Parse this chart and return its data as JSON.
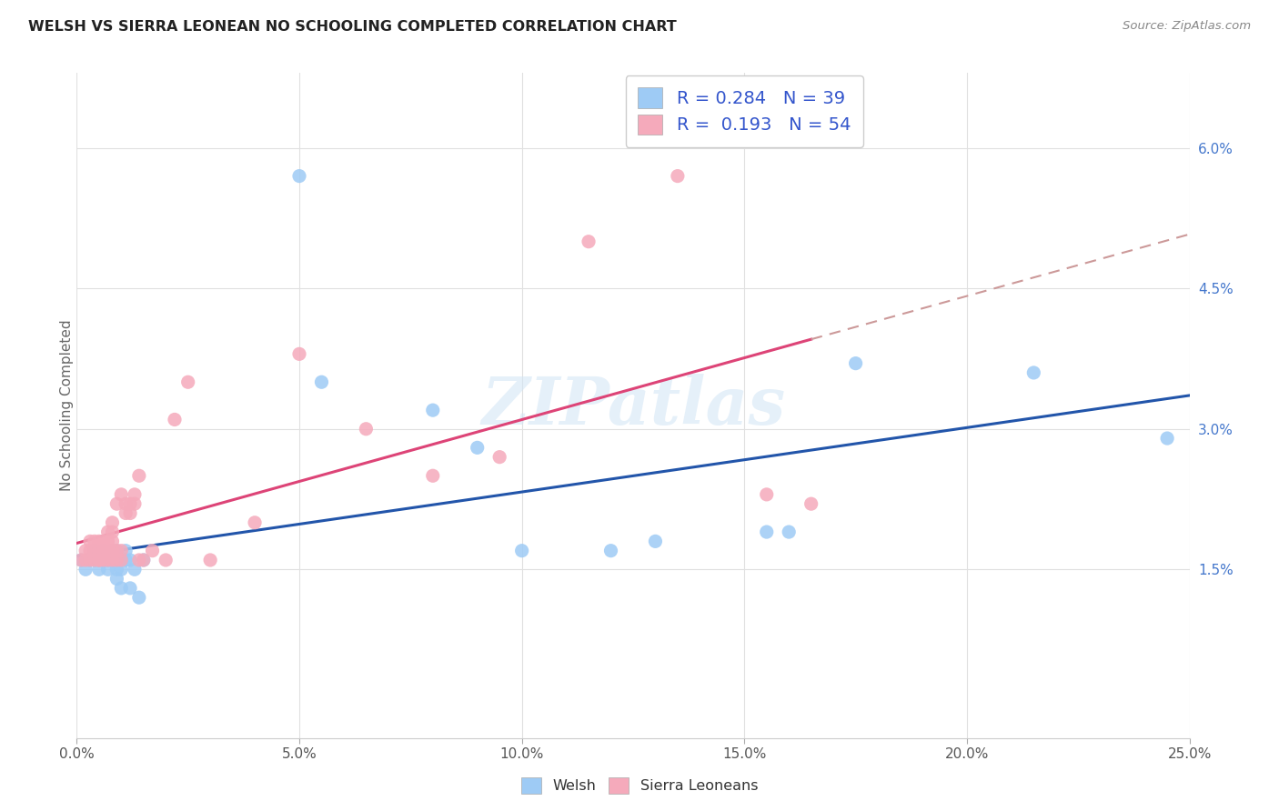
{
  "title": "WELSH VS SIERRA LEONEAN NO SCHOOLING COMPLETED CORRELATION CHART",
  "source": "Source: ZipAtlas.com",
  "xlabel_ticks": [
    "0.0%",
    "5.0%",
    "10.0%",
    "15.0%",
    "20.0%",
    "25.0%"
  ],
  "xlabel_vals": [
    0.0,
    0.05,
    0.1,
    0.15,
    0.2,
    0.25
  ],
  "ylabel_ticks": [
    "1.5%",
    "3.0%",
    "4.5%",
    "6.0%"
  ],
  "ylabel_vals": [
    0.015,
    0.03,
    0.045,
    0.06
  ],
  "ylabel_label": "No Schooling Completed",
  "xlim": [
    0.0,
    0.25
  ],
  "ylim": [
    -0.003,
    0.068
  ],
  "welsh_R": 0.284,
  "welsh_N": 39,
  "sierra_R": 0.193,
  "sierra_N": 54,
  "welsh_color": "#9ECBF5",
  "welsh_edge": "#9ECBF5",
  "sierra_color": "#F5AABB",
  "sierra_edge": "#F5AABB",
  "trend_welsh_color": "#2255AA",
  "trend_sierra_color": "#DD4477",
  "trend_sierra_dash_color": "#CC9999",
  "background_color": "#FFFFFF",
  "grid_color": "#E0E0E0",
  "welsh_x": [
    0.001,
    0.002,
    0.003,
    0.004,
    0.004,
    0.005,
    0.005,
    0.006,
    0.006,
    0.007,
    0.007,
    0.008,
    0.008,
    0.009,
    0.009,
    0.009,
    0.009,
    0.01,
    0.01,
    0.01,
    0.011,
    0.011,
    0.012,
    0.012,
    0.013,
    0.014,
    0.015,
    0.05,
    0.055,
    0.08,
    0.09,
    0.1,
    0.12,
    0.13,
    0.155,
    0.16,
    0.175,
    0.215,
    0.245
  ],
  "welsh_y": [
    0.016,
    0.015,
    0.016,
    0.016,
    0.017,
    0.015,
    0.016,
    0.016,
    0.017,
    0.015,
    0.016,
    0.016,
    0.017,
    0.015,
    0.014,
    0.016,
    0.017,
    0.015,
    0.013,
    0.016,
    0.016,
    0.017,
    0.013,
    0.016,
    0.015,
    0.012,
    0.016,
    0.057,
    0.035,
    0.032,
    0.028,
    0.017,
    0.017,
    0.018,
    0.019,
    0.019,
    0.037,
    0.036,
    0.029
  ],
  "sierra_x": [
    0.001,
    0.002,
    0.002,
    0.003,
    0.003,
    0.003,
    0.004,
    0.004,
    0.004,
    0.005,
    0.005,
    0.005,
    0.005,
    0.006,
    0.006,
    0.006,
    0.007,
    0.007,
    0.007,
    0.007,
    0.008,
    0.008,
    0.008,
    0.008,
    0.008,
    0.009,
    0.009,
    0.009,
    0.01,
    0.01,
    0.01,
    0.011,
    0.011,
    0.012,
    0.012,
    0.013,
    0.013,
    0.014,
    0.014,
    0.015,
    0.017,
    0.02,
    0.022,
    0.025,
    0.03,
    0.04,
    0.05,
    0.065,
    0.08,
    0.095,
    0.115,
    0.135,
    0.155,
    0.165
  ],
  "sierra_y": [
    0.016,
    0.016,
    0.017,
    0.016,
    0.017,
    0.018,
    0.016,
    0.017,
    0.018,
    0.016,
    0.016,
    0.017,
    0.018,
    0.016,
    0.017,
    0.018,
    0.016,
    0.017,
    0.018,
    0.019,
    0.016,
    0.017,
    0.018,
    0.019,
    0.02,
    0.016,
    0.017,
    0.022,
    0.016,
    0.017,
    0.023,
    0.021,
    0.022,
    0.022,
    0.021,
    0.023,
    0.022,
    0.016,
    0.025,
    0.016,
    0.017,
    0.016,
    0.031,
    0.035,
    0.016,
    0.02,
    0.038,
    0.03,
    0.025,
    0.027,
    0.05,
    0.057,
    0.023,
    0.022
  ],
  "watermark_text": "ZIPatlas",
  "watermark_color": "#D0E4F5",
  "legend_text_color": "#3355CC"
}
